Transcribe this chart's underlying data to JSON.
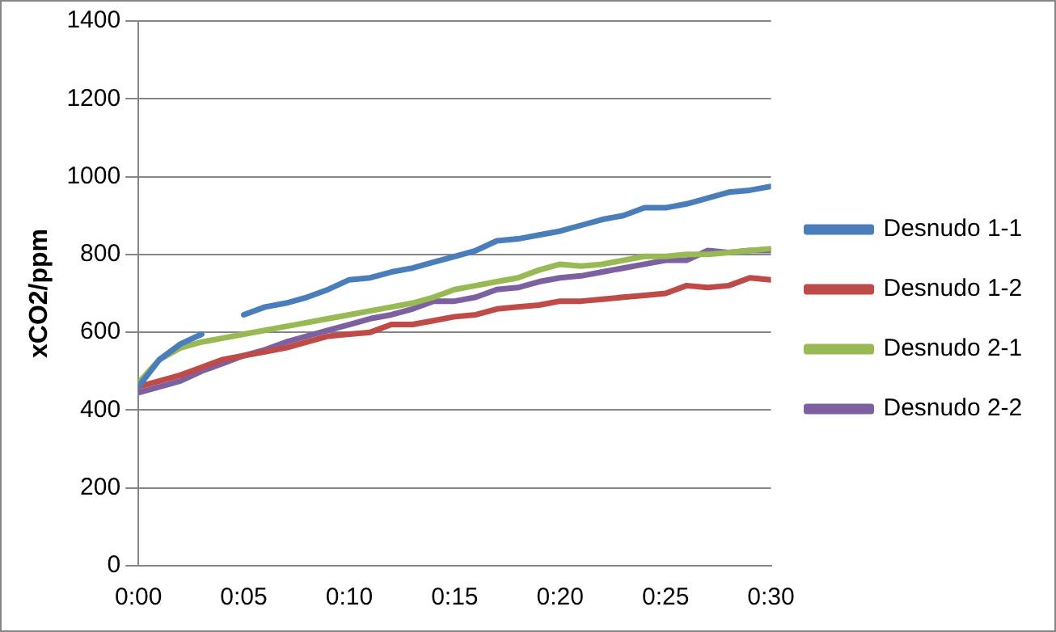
{
  "chart_data": {
    "type": "line",
    "ylabel": "xCO2/ppm",
    "x": [
      0,
      0.0167,
      0.0333,
      0.05,
      0.0667,
      0.0833,
      0.1,
      0.1167,
      0.1333,
      0.15,
      0.1667,
      0.1833,
      0.2,
      0.2167,
      0.2333,
      0.25,
      0.2667,
      0.2833,
      0.3,
      0.3167,
      0.3333,
      0.35,
      0.3667,
      0.3833,
      0.4,
      0.4167,
      0.4333,
      0.45,
      0.4667,
      0.4833,
      0.5
    ],
    "series": [
      {
        "name": "Desnudo 1-1",
        "color": "#4a7ebb",
        "values": [
          460,
          530,
          570,
          595,
          null,
          645,
          665,
          675,
          690,
          710,
          735,
          740,
          755,
          765,
          780,
          795,
          810,
          835,
          840,
          850,
          860,
          875,
          890,
          900,
          920,
          920,
          930,
          945,
          960,
          965,
          975
        ]
      },
      {
        "name": "Desnudo 1-2",
        "color": "#be4b48",
        "values": [
          460,
          475,
          490,
          510,
          530,
          540,
          550,
          560,
          575,
          590,
          595,
          600,
          620,
          620,
          630,
          640,
          645,
          660,
          665,
          670,
          680,
          680,
          685,
          690,
          695,
          700,
          720,
          715,
          720,
          740,
          735
        ]
      },
      {
        "name": "Desnudo 2-1",
        "color": "#98b954",
        "values": [
          470,
          530,
          560,
          575,
          585,
          595,
          605,
          615,
          625,
          635,
          645,
          655,
          665,
          675,
          690,
          710,
          720,
          730,
          740,
          760,
          775,
          770,
          775,
          785,
          795,
          795,
          800,
          800,
          805,
          810,
          815
        ]
      },
      {
        "name": "Desnudo 2-2",
        "color": "#7d60a0",
        "values": [
          445,
          460,
          475,
          500,
          520,
          540,
          555,
          575,
          590,
          605,
          620,
          635,
          645,
          660,
          680,
          680,
          690,
          710,
          715,
          730,
          740,
          745,
          755,
          765,
          775,
          785,
          785,
          810,
          805,
          810,
          810
        ]
      }
    ],
    "xlim": [
      0,
      0.5
    ],
    "xticks": [
      {
        "value": 0,
        "label": "0:00"
      },
      {
        "value": 0.0833,
        "label": "0:05"
      },
      {
        "value": 0.1667,
        "label": "0:10"
      },
      {
        "value": 0.25,
        "label": "0:15"
      },
      {
        "value": 0.3333,
        "label": "0:20"
      },
      {
        "value": 0.4167,
        "label": "0:25"
      },
      {
        "value": 0.5,
        "label": "0:30"
      }
    ],
    "ylim": [
      0,
      1400
    ],
    "yticks": [
      0,
      200,
      400,
      600,
      800,
      1000,
      1200,
      1400
    ],
    "grid": "y",
    "legend": "right",
    "marker": "none",
    "line_style": "solid"
  }
}
